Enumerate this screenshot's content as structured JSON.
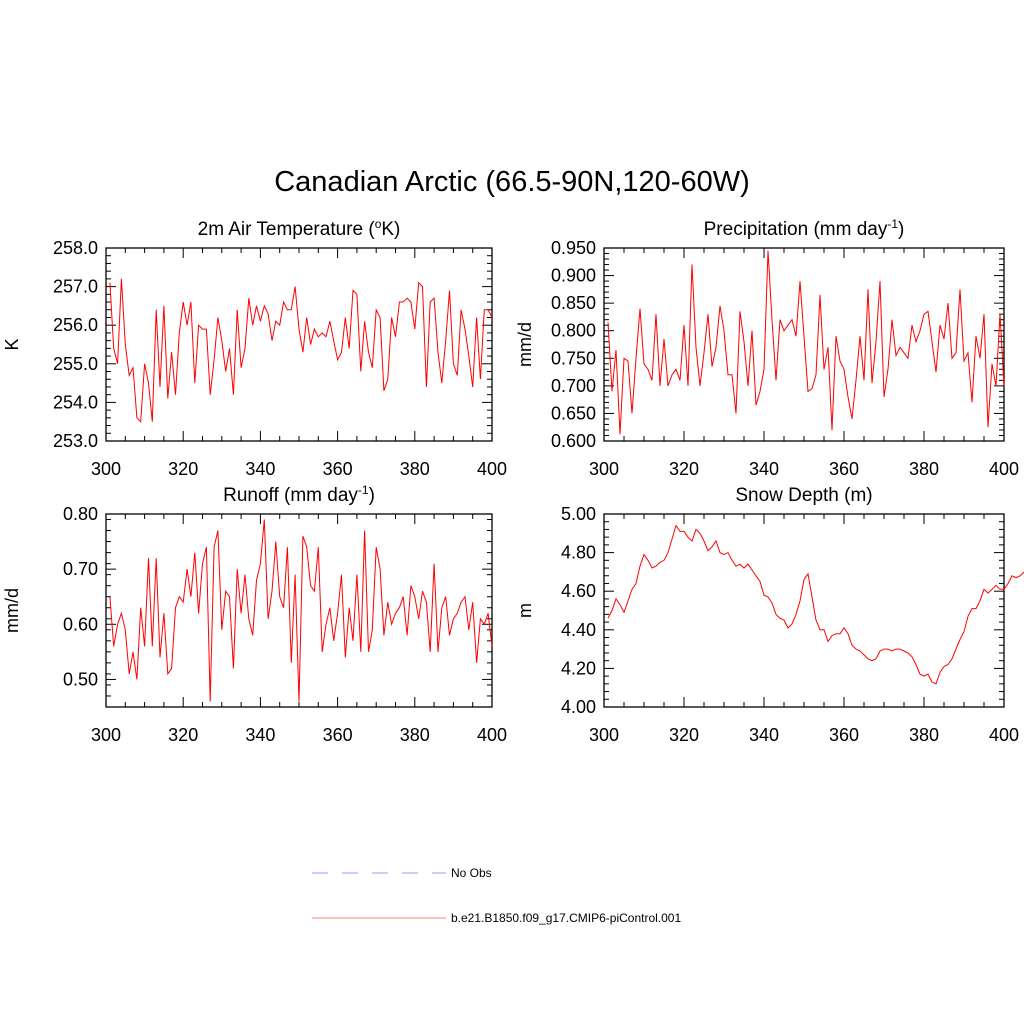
{
  "title": "Canadian Arctic (66.5-90N,120-60W)",
  "colors": {
    "series": "#ff0000",
    "obs": "#9999ff",
    "axis": "#000000"
  },
  "legend": [
    {
      "label": "No Obs",
      "style": "dashed",
      "color": "#9999ff"
    },
    {
      "label": "b.e21.B1850.f09_g17.CMIP6-piControl.001",
      "style": "solid",
      "color": "#ff8080"
    }
  ],
  "chart_data": [
    {
      "id": "tas",
      "type": "line",
      "title_parts": [
        "2m Air Temperature (",
        "o",
        "K)"
      ],
      "title_sup_index": 1,
      "ylabel": "K",
      "xlim": [
        300,
        400
      ],
      "ylim": [
        253.0,
        258.0
      ],
      "xticks": [
        300,
        320,
        340,
        360,
        380,
        400
      ],
      "yticks": [
        253.0,
        254.0,
        255.0,
        256.0,
        257.0,
        258.0
      ],
      "ytick_labels": [
        "253.0",
        "254.0",
        "255.0",
        "256.0",
        "257.0",
        "258.0"
      ],
      "series": [
        {
          "name": "b.e21.B1850.f09_g17.CMIP6-piControl.001",
          "x_start": 301,
          "values": [
            257.1,
            255.4,
            255.0,
            257.2,
            255.5,
            254.7,
            254.9,
            253.6,
            253.5,
            255.0,
            254.5,
            253.5,
            256.4,
            254.4,
            256.5,
            254.1,
            255.3,
            254.2,
            255.8,
            256.6,
            256.0,
            256.6,
            254.5,
            256.0,
            255.9,
            255.9,
            254.2,
            255.1,
            256.2,
            255.6,
            254.8,
            255.4,
            254.2,
            256.4,
            254.9,
            255.4,
            256.7,
            256.0,
            256.5,
            256.1,
            256.5,
            256.3,
            255.6,
            256.1,
            256.0,
            256.6,
            256.4,
            256.4,
            257.0,
            255.9,
            255.3,
            256.2,
            255.5,
            255.9,
            255.7,
            255.8,
            255.7,
            256.1,
            255.6,
            255.1,
            255.3,
            256.2,
            255.4,
            256.9,
            256.8,
            254.8,
            256.1,
            255.3,
            254.9,
            256.4,
            256.2,
            254.3,
            254.6,
            256.2,
            255.7,
            256.6,
            256.6,
            256.7,
            256.6,
            255.9,
            257.1,
            257.0,
            254.4,
            256.6,
            256.7,
            255.3,
            254.5,
            255.6,
            256.9,
            255.0,
            254.7,
            256.4,
            255.9,
            255.2,
            254.4,
            256.2,
            254.6,
            256.4,
            256.4,
            256.2
          ]
        }
      ]
    },
    {
      "id": "precip",
      "type": "line",
      "title_parts": [
        "Precipitation (mm day",
        "-1",
        ")"
      ],
      "title_sup_index": 1,
      "ylabel": "mm/d",
      "xlim": [
        300,
        400
      ],
      "ylim": [
        0.6,
        0.95
      ],
      "xticks": [
        300,
        320,
        340,
        360,
        380,
        400
      ],
      "yticks": [
        0.6,
        0.65,
        0.7,
        0.75,
        0.8,
        0.85,
        0.9,
        0.95
      ],
      "ytick_labels": [
        "0.600",
        "0.650",
        "0.700",
        "0.750",
        "0.800",
        "0.850",
        "0.900",
        "0.950"
      ],
      "series": [
        {
          "name": "b.e21.B1850.f09_g17.CMIP6-piControl.001",
          "x_start": 301,
          "values": [
            0.815,
            0.69,
            0.765,
            0.612,
            0.75,
            0.745,
            0.65,
            0.75,
            0.84,
            0.74,
            0.73,
            0.71,
            0.83,
            0.7,
            0.785,
            0.7,
            0.72,
            0.73,
            0.71,
            0.81,
            0.7,
            0.92,
            0.77,
            0.7,
            0.76,
            0.83,
            0.735,
            0.77,
            0.845,
            0.8,
            0.72,
            0.72,
            0.65,
            0.835,
            0.78,
            0.7,
            0.8,
            0.665,
            0.69,
            0.73,
            0.945,
            0.82,
            0.71,
            0.82,
            0.8,
            0.81,
            0.82,
            0.79,
            0.89,
            0.79,
            0.69,
            0.695,
            0.72,
            0.865,
            0.73,
            0.77,
            0.62,
            0.79,
            0.745,
            0.73,
            0.68,
            0.64,
            0.71,
            0.79,
            0.71,
            0.875,
            0.705,
            0.78,
            0.89,
            0.68,
            0.73,
            0.82,
            0.755,
            0.77,
            0.76,
            0.75,
            0.81,
            0.78,
            0.8,
            0.83,
            0.835,
            0.78,
            0.725,
            0.81,
            0.785,
            0.85,
            0.75,
            0.76,
            0.875,
            0.745,
            0.76,
            0.67,
            0.79,
            0.75,
            0.83,
            0.625,
            0.74,
            0.7,
            0.83,
            0.7
          ]
        }
      ]
    },
    {
      "id": "runoff",
      "type": "line",
      "title_parts": [
        "Runoff (mm day",
        "-1",
        ")"
      ],
      "title_sup_index": 1,
      "ylabel": "mm/d",
      "xlim": [
        300,
        400
      ],
      "ylim": [
        0.45,
        0.8
      ],
      "xticks": [
        300,
        320,
        340,
        360,
        380,
        400
      ],
      "yticks": [
        0.5,
        0.6,
        0.7,
        0.8
      ],
      "ytick_labels": [
        "0.50",
        "0.60",
        "0.70",
        "0.80"
      ],
      "series": [
        {
          "name": "b.e21.B1850.f09_g17.CMIP6-piControl.001",
          "x_start": 301,
          "values": [
            0.65,
            0.56,
            0.6,
            0.62,
            0.59,
            0.51,
            0.55,
            0.5,
            0.63,
            0.56,
            0.72,
            0.56,
            0.72,
            0.54,
            0.62,
            0.51,
            0.52,
            0.63,
            0.65,
            0.64,
            0.7,
            0.65,
            0.73,
            0.62,
            0.71,
            0.74,
            0.46,
            0.74,
            0.77,
            0.59,
            0.66,
            0.65,
            0.52,
            0.7,
            0.62,
            0.69,
            0.61,
            0.58,
            0.68,
            0.71,
            0.79,
            0.61,
            0.66,
            0.75,
            0.65,
            0.63,
            0.74,
            0.53,
            0.69,
            0.46,
            0.76,
            0.74,
            0.67,
            0.66,
            0.74,
            0.55,
            0.6,
            0.63,
            0.57,
            0.62,
            0.69,
            0.54,
            0.63,
            0.57,
            0.69,
            0.55,
            0.77,
            0.55,
            0.59,
            0.74,
            0.7,
            0.58,
            0.64,
            0.6,
            0.62,
            0.63,
            0.65,
            0.58,
            0.67,
            0.65,
            0.61,
            0.66,
            0.64,
            0.55,
            0.71,
            0.55,
            0.63,
            0.65,
            0.58,
            0.61,
            0.62,
            0.64,
            0.65,
            0.59,
            0.64,
            0.53,
            0.61,
            0.6,
            0.62,
            0.56
          ]
        }
      ]
    },
    {
      "id": "snowdepth",
      "type": "line",
      "title_parts": [
        "Snow Depth (m)"
      ],
      "title_sup_index": -1,
      "ylabel": "m",
      "xlim": [
        300,
        400
      ],
      "ylim": [
        4.0,
        5.0
      ],
      "xticks": [
        300,
        320,
        340,
        360,
        380,
        400
      ],
      "yticks": [
        4.0,
        4.2,
        4.4,
        4.6,
        4.8,
        5.0
      ],
      "ytick_labels": [
        "4.00",
        "4.20",
        "4.40",
        "4.60",
        "4.80",
        "5.00"
      ],
      "series": [
        {
          "name": "b.e21.B1850.f09_g17.CMIP6-piControl.001",
          "x_start": 301,
          "values": [
            4.46,
            4.5,
            4.56,
            4.53,
            4.49,
            4.55,
            4.61,
            4.64,
            4.73,
            4.79,
            4.76,
            4.72,
            4.73,
            4.75,
            4.76,
            4.8,
            4.87,
            4.94,
            4.91,
            4.91,
            4.88,
            4.86,
            4.92,
            4.9,
            4.86,
            4.81,
            4.83,
            4.86,
            4.8,
            4.79,
            4.8,
            4.76,
            4.73,
            4.74,
            4.72,
            4.74,
            4.71,
            4.68,
            4.65,
            4.58,
            4.57,
            4.54,
            4.48,
            4.46,
            4.45,
            4.41,
            4.43,
            4.48,
            4.55,
            4.66,
            4.69,
            4.57,
            4.45,
            4.4,
            4.4,
            4.34,
            4.37,
            4.38,
            4.38,
            4.41,
            4.38,
            4.32,
            4.3,
            4.29,
            4.27,
            4.25,
            4.24,
            4.25,
            4.29,
            4.3,
            4.3,
            4.29,
            4.3,
            4.3,
            4.29,
            4.28,
            4.26,
            4.22,
            4.17,
            4.16,
            4.17,
            4.13,
            4.12,
            4.18,
            4.21,
            4.22,
            4.25,
            4.3,
            4.35,
            4.39,
            4.47,
            4.51,
            4.51,
            4.55,
            4.61,
            4.59,
            4.61,
            4.63,
            4.61,
            4.61,
            4.64,
            4.68,
            4.67,
            4.68,
            4.7
          ]
        }
      ]
    }
  ]
}
